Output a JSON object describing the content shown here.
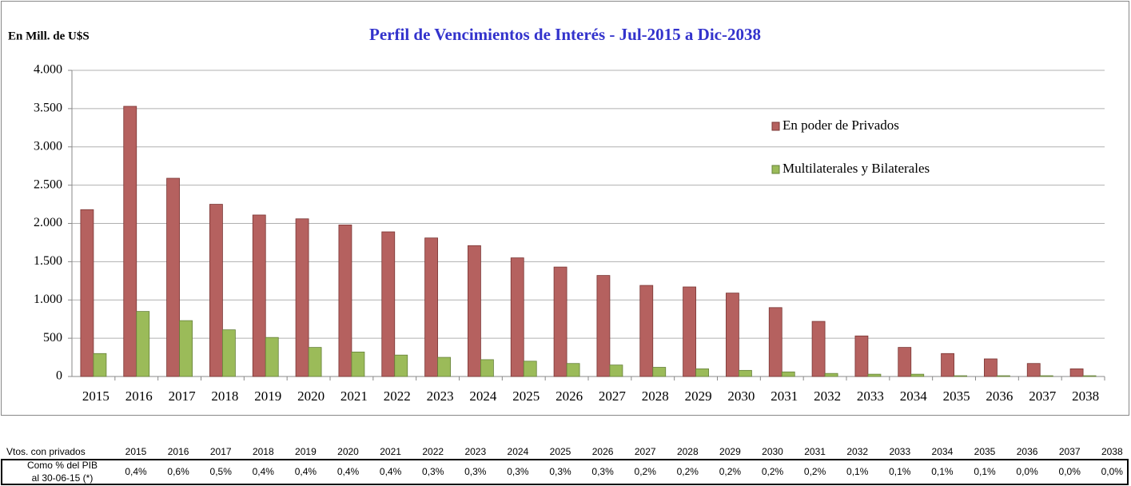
{
  "chart_data": {
    "type": "bar",
    "title": "Perfil de Vencimientos de Interés - Jul-2015 a Dic-2038",
    "y_label": "En Mill. de U$S",
    "categories": [
      "2015",
      "2016",
      "2017",
      "2018",
      "2019",
      "2020",
      "2021",
      "2022",
      "2023",
      "2024",
      "2025",
      "2026",
      "2027",
      "2028",
      "2029",
      "2030",
      "2031",
      "2032",
      "2033",
      "2034",
      "2035",
      "2036",
      "2037",
      "2038"
    ],
    "series": [
      {
        "name": "En poder de Privados",
        "color": "#b5615f",
        "values": [
          2180,
          3530,
          2590,
          2250,
          2110,
          2060,
          1980,
          1890,
          1810,
          1710,
          1550,
          1430,
          1320,
          1190,
          1170,
          1090,
          900,
          720,
          530,
          380,
          300,
          230,
          170,
          100
        ]
      },
      {
        "name": "Multilaterales y Bilaterales",
        "color": "#9bbb59",
        "values": [
          300,
          850,
          730,
          610,
          510,
          380,
          320,
          280,
          250,
          220,
          200,
          170,
          150,
          120,
          100,
          80,
          60,
          40,
          30,
          30,
          10,
          10,
          10,
          10
        ]
      }
    ],
    "ylim": [
      0,
      4000
    ],
    "yticks": [
      0,
      500,
      {
        "value": 1000,
        "label": "1.000"
      },
      {
        "value": 1500,
        "label": "1.500"
      },
      {
        "value": 2000,
        "label": "2.000"
      },
      {
        "value": 2500,
        "label": "2.500"
      },
      {
        "value": 3000,
        "label": "3.000"
      },
      {
        "value": 3500,
        "label": "3.500"
      },
      {
        "value": 4000,
        "label": "4.000"
      }
    ],
    "grid": true,
    "legend": "upper right"
  },
  "table": {
    "header": [
      "Vtos. con privados",
      "2015",
      "2016",
      "2017",
      "2018",
      "2019",
      "2020",
      "2021",
      "2022",
      "2023",
      "2024",
      "2025",
      "2026",
      "2027",
      "2028",
      "2029",
      "2030",
      "2031",
      "2032",
      "2033",
      "2034",
      "2035",
      "2036",
      "2037",
      "2038"
    ],
    "rows": [
      [
        "Como % del PIB\nal 30-06-15 (*)",
        "0,4%",
        "0,6%",
        "0,5%",
        "0,4%",
        "0,4%",
        "0,4%",
        "0,4%",
        "0,3%",
        "0,3%",
        "0,3%",
        "0,3%",
        "0,3%",
        "0,2%",
        "0,2%",
        "0,2%",
        "0,2%",
        "0,2%",
        "0,1%",
        "0,1%",
        "0,1%",
        "0,1%",
        "0,0%",
        "0,0%",
        "0,0%"
      ]
    ]
  }
}
